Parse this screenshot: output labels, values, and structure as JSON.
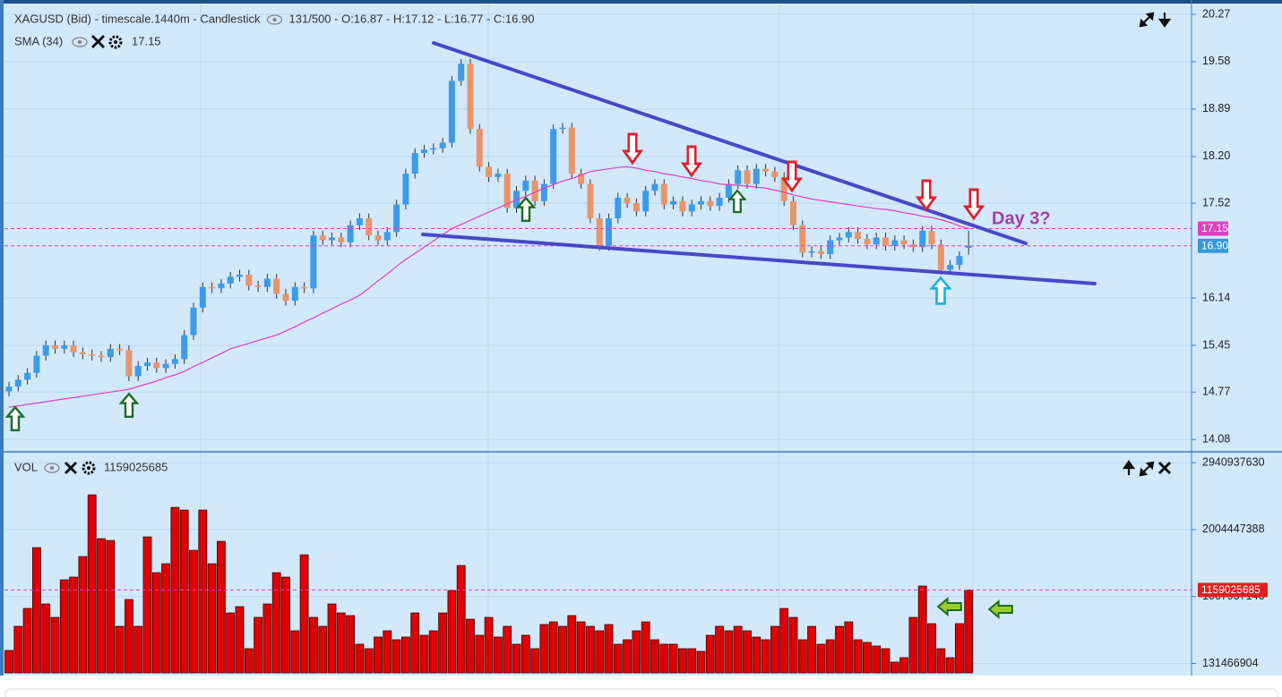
{
  "chart_data": [
    {
      "type": "candlestick",
      "title": "XAGUSD (Bid) - timescale.1440m - Candlestick",
      "subtitle": "131/500 - O:16.87 - H:17.12 - L:16.77 - C:16.90",
      "up_color": "#3d9be9",
      "down_color": "#e8956a",
      "open": [
        14.78,
        14.85,
        14.95,
        15.05,
        15.3,
        15.45,
        15.4,
        15.45,
        15.35,
        15.32,
        15.3,
        15.28,
        15.4,
        15.38,
        15.0,
        15.15,
        15.2,
        15.12,
        15.18,
        15.25,
        15.6,
        16.0,
        16.3,
        16.28,
        16.35,
        16.45,
        16.48,
        16.32,
        16.3,
        16.42,
        16.2,
        16.1,
        16.3,
        16.28,
        17.05,
        16.98,
        17.02,
        16.95,
        17.2,
        17.3,
        17.05,
        16.98,
        17.1,
        17.5,
        17.95,
        18.25,
        18.3,
        18.32,
        18.4,
        19.3,
        19.55,
        18.6,
        18.05,
        17.9,
        17.95,
        17.45,
        17.7,
        17.85,
        17.55,
        17.8,
        18.6,
        18.62,
        17.95,
        17.8,
        17.3,
        16.9,
        17.3,
        17.6,
        17.52,
        17.4,
        17.7,
        17.8,
        17.5,
        17.55,
        17.4,
        17.5,
        17.55,
        17.48,
        17.6,
        17.8,
        18.0,
        17.8,
        18.02,
        17.98,
        17.9,
        17.55,
        17.2,
        16.8,
        16.82,
        16.78,
        16.98,
        17.02,
        17.1,
        17.0,
        16.92,
        17.02,
        16.9,
        16.98,
        16.92,
        16.88,
        17.12,
        16.92,
        16.55,
        16.62,
        16.87
      ],
      "high": [
        14.92,
        15.02,
        15.12,
        15.37,
        15.52,
        15.52,
        15.52,
        15.52,
        15.42,
        15.39,
        15.37,
        15.47,
        15.47,
        15.45,
        15.22,
        15.27,
        15.27,
        15.25,
        15.32,
        15.67,
        16.07,
        16.37,
        16.37,
        16.42,
        16.52,
        16.55,
        16.55,
        16.39,
        16.49,
        16.49,
        16.27,
        16.37,
        16.37,
        17.12,
        17.12,
        17.09,
        17.09,
        17.27,
        17.37,
        17.37,
        17.12,
        17.17,
        17.57,
        18.02,
        18.32,
        18.37,
        18.39,
        18.47,
        19.37,
        19.62,
        19.62,
        18.67,
        18.12,
        18.02,
        18.02,
        17.77,
        17.92,
        17.92,
        17.87,
        18.67,
        18.69,
        18.69,
        18.02,
        17.87,
        17.37,
        17.37,
        17.67,
        17.67,
        17.59,
        17.77,
        17.87,
        17.87,
        17.62,
        17.62,
        17.57,
        17.62,
        17.62,
        17.67,
        17.87,
        18.07,
        18.07,
        18.09,
        18.09,
        18.05,
        17.97,
        17.62,
        17.27,
        16.89,
        16.89,
        17.05,
        17.09,
        17.17,
        17.17,
        17.07,
        17.09,
        17.09,
        17.05,
        17.05,
        16.99,
        17.19,
        17.19,
        16.99,
        16.69,
        16.82,
        17.12
      ],
      "low": [
        14.71,
        14.78,
        14.88,
        14.98,
        15.23,
        15.33,
        15.33,
        15.28,
        15.25,
        15.23,
        15.21,
        15.21,
        15.31,
        14.93,
        14.93,
        15.08,
        15.05,
        15.05,
        15.11,
        15.18,
        15.53,
        15.93,
        16.21,
        16.21,
        16.28,
        16.38,
        16.25,
        16.23,
        16.23,
        16.13,
        16.03,
        16.03,
        16.21,
        16.21,
        16.91,
        16.91,
        16.88,
        16.88,
        17.13,
        16.98,
        16.91,
        16.91,
        17.03,
        17.43,
        17.88,
        18.18,
        18.23,
        18.25,
        18.33,
        19.23,
        18.53,
        17.98,
        17.83,
        17.83,
        17.38,
        17.38,
        17.63,
        17.48,
        17.48,
        17.73,
        18.53,
        17.88,
        17.73,
        17.23,
        16.83,
        16.83,
        17.23,
        17.45,
        17.33,
        17.33,
        17.63,
        17.43,
        17.43,
        17.33,
        17.33,
        17.43,
        17.41,
        17.41,
        17.53,
        17.73,
        17.73,
        17.73,
        17.91,
        17.83,
        17.48,
        17.13,
        16.73,
        16.73,
        16.71,
        16.71,
        16.91,
        16.95,
        16.93,
        16.85,
        16.85,
        16.83,
        16.83,
        16.85,
        16.81,
        16.81,
        16.85,
        16.48,
        16.48,
        16.55,
        16.77
      ],
      "close": [
        14.85,
        14.95,
        15.05,
        15.3,
        15.45,
        15.4,
        15.45,
        15.35,
        15.32,
        15.3,
        15.28,
        15.4,
        15.38,
        15.0,
        15.15,
        15.2,
        15.12,
        15.18,
        15.25,
        15.6,
        16.0,
        16.3,
        16.28,
        16.35,
        16.45,
        16.48,
        16.32,
        16.3,
        16.42,
        16.2,
        16.1,
        16.3,
        16.28,
        17.05,
        16.98,
        17.02,
        16.95,
        17.2,
        17.3,
        17.05,
        16.98,
        17.1,
        17.5,
        17.95,
        18.25,
        18.3,
        18.32,
        18.4,
        19.3,
        19.55,
        18.6,
        18.05,
        17.9,
        17.95,
        17.45,
        17.7,
        17.85,
        17.55,
        17.8,
        18.6,
        18.62,
        17.95,
        17.8,
        17.3,
        16.9,
        17.3,
        17.6,
        17.52,
        17.4,
        17.7,
        17.8,
        17.5,
        17.55,
        17.4,
        17.5,
        17.55,
        17.48,
        17.6,
        17.8,
        18.0,
        17.8,
        18.02,
        17.98,
        17.9,
        17.55,
        17.2,
        16.8,
        16.82,
        16.78,
        16.98,
        17.02,
        17.1,
        17.0,
        16.92,
        17.02,
        16.9,
        16.98,
        16.92,
        16.88,
        17.12,
        16.92,
        16.55,
        16.62,
        16.75,
        16.9
      ],
      "sma": {
        "name": "SMA (34)",
        "value": 17.15,
        "color": "#e040c0",
        "values": [
          14.55,
          14.57,
          14.59,
          14.61,
          14.63,
          14.65,
          14.67,
          14.69,
          14.71,
          14.73,
          14.75,
          14.77,
          14.79,
          14.81,
          14.85,
          14.89,
          14.93,
          14.98,
          15.02,
          15.07,
          15.14,
          15.2,
          15.27,
          15.33,
          15.4,
          15.44,
          15.48,
          15.52,
          15.56,
          15.6,
          15.66,
          15.72,
          15.79,
          15.85,
          15.92,
          15.98,
          16.05,
          16.11,
          16.18,
          16.28,
          16.39,
          16.49,
          16.6,
          16.7,
          16.79,
          16.88,
          16.97,
          17.06,
          17.15,
          17.21,
          17.27,
          17.33,
          17.39,
          17.45,
          17.51,
          17.57,
          17.62,
          17.68,
          17.74,
          17.79,
          17.84,
          17.88,
          17.93,
          17.98,
          18.0,
          18.02,
          18.04,
          18.05,
          18.03,
          18.0,
          17.98,
          17.95,
          17.93,
          17.9,
          17.88,
          17.85,
          17.83,
          17.8,
          17.79,
          17.78,
          17.77,
          17.75,
          17.74,
          17.71,
          17.68,
          17.64,
          17.61,
          17.58,
          17.56,
          17.54,
          17.52,
          17.5,
          17.48,
          17.46,
          17.44,
          17.43,
          17.41,
          17.38,
          17.36,
          17.33,
          17.31,
          17.28,
          17.24,
          17.19,
          17.15
        ]
      },
      "last_price": {
        "value": 16.9,
        "label": "16.90"
      },
      "last_price_color": "#3399dd",
      "annotation": "Day 3?",
      "ylim": [
        13.9,
        20.4
      ],
      "yticks": [
        20.27,
        19.58,
        18.89,
        {
          "value": 18.2,
          "label": "18.20"
        },
        17.52,
        16.14,
        15.45,
        14.77,
        14.08
      ],
      "grid": true
    },
    {
      "type": "bar",
      "title": "VOL",
      "color": "#e00000",
      "value": 1159025685,
      "values": [
        312850000,
        650730000,
        901010000,
        1751960000,
        963580000,
        775870000,
        1301460000,
        1339000000,
        1626820000,
        2490290000,
        1877100000,
        1852070000,
        650730000,
        1026150000,
        650730000,
        1902130000,
        1401570000,
        1526710000,
        2315090000,
        2277550000,
        1714420000,
        2277550000,
        1526710000,
        1839560000,
        838440000,
        926040000,
        337880000,
        775870000,
        963580000,
        1401570000,
        1339000000,
        588160000,
        1651850000,
        775870000,
        650730000,
        963580000,
        838440000,
        800900000,
        400450000,
        337880000,
        500560000,
        588160000,
        463020000,
        500560000,
        838440000,
        525590000,
        588160000,
        838440000,
        1151290000,
        1501680000,
        750840000,
        525590000,
        775870000,
        500560000,
        650730000,
        400450000,
        525590000,
        337880000,
        675760000,
        713300000,
        650730000,
        800900000,
        713300000,
        650730000,
        588160000,
        675760000,
        400450000,
        463020000,
        588160000,
        713300000,
        463020000,
        400450000,
        400450000,
        337880000,
        337880000,
        300340000,
        525590000,
        650730000,
        588160000,
        650730000,
        588160000,
        500560000,
        463020000,
        650730000,
        901010000,
        775870000,
        463020000,
        650730000,
        400450000,
        463020000,
        650730000,
        713300000,
        463020000,
        425480000,
        375420000,
        337880000,
        150170000,
        212740000,
        775870000,
        1213860000,
        688270000,
        337880000,
        212740000,
        688270000,
        1159025685
      ],
      "ylim": [
        0,
        3080000000
      ],
      "yticks": [
        2940937630,
        2004447388,
        1067957146,
        131466904
      ],
      "grid": true
    }
  ]
}
